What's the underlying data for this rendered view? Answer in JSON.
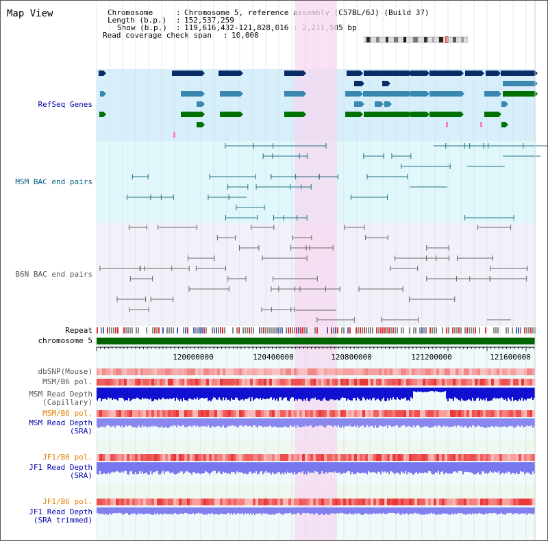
{
  "window": {
    "title": "Map View"
  },
  "header": {
    "chromosome_key": "Chromosome",
    "chromosome_val": "Chromosome 5, reference assembly (C57BL/6J) (Build 37)",
    "length_key": "Length (b.p.)",
    "length_val": "152,537,259",
    "show_key": "Show (b.p.)",
    "show_val": "119,616,432-121,828,016 : 2,211,585 bp",
    "coverage_key": "Read coverage check span",
    "coverage_val": "10,000"
  },
  "tracks": {
    "refseq": "RefSeq Genes",
    "msm_bac": "MSM BAC end pairs",
    "b6n_bac": "B6N BAC end pairs",
    "repeat": "Repeat",
    "chromosome": "chromosome 5",
    "dbsnp": "dbSNP(Mouse)",
    "msm_b6_pol_1": "MSM/B6 pol.",
    "msm_depth_cap_1": "MSM Read Depth",
    "msm_depth_cap_2": "(Capillary)",
    "msm_b6_pol_2": "MSM/B6 pol.",
    "msm_depth_sra_1": "MSM Read Depth",
    "msm_depth_sra_2": "(SRA)",
    "jf1_b6_pol_1": "JF1/B6 pol.",
    "jf1_depth_sra_1": "JF1 Read Depth",
    "jf1_depth_sra_2": "(SRA)",
    "jf1_b6_pol_2": "JF1/B6 pol.",
    "jf1_depth_trim_1": "JF1 Read Depth",
    "jf1_depth_trim_2": "(SRA trimmed)"
  },
  "ruler": {
    "ticks": [
      "120000000",
      "120400000",
      "120800000",
      "121200000",
      "121600000"
    ]
  },
  "colors": {
    "refseq_bg": "#d6effa",
    "msm_bg": "#e0f8fb",
    "b6n_bg": "#f1f1f9",
    "highlight": "#f6d8f0",
    "msm_label": "#006080",
    "b6n_label": "#555555",
    "refseq_label": "#0000a0",
    "pol_orange": "#e08000",
    "depth_blue": "#0000b0",
    "chrom_green": "#006400"
  }
}
